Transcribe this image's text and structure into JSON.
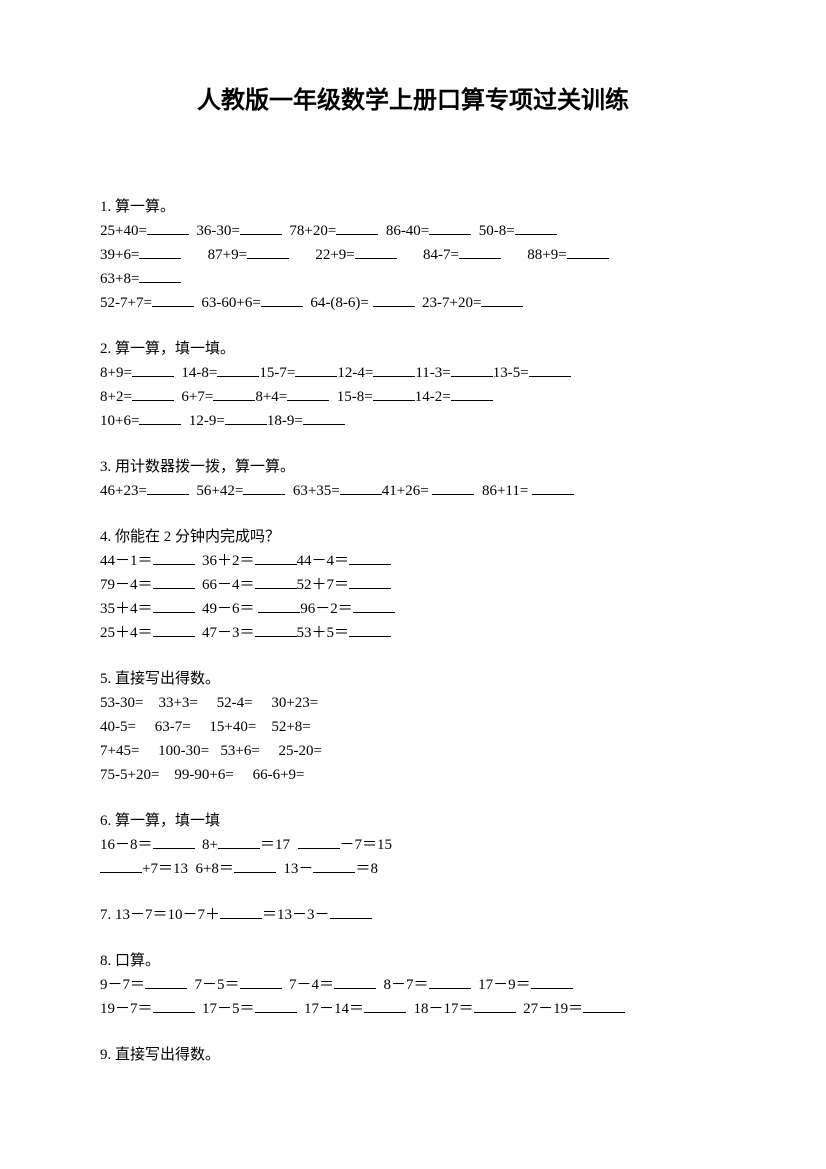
{
  "title": "人教版一年级数学上册口算专项过关训练",
  "sections": [
    {
      "heading": "1.  算一算。",
      "lines": [
        "25+40=______  36-30=______  78+20=______  86-40=______  50-8=______",
        "39+6=______       87+9=______       22+9=______       84-7=______       88+9=______",
        "63+8=______",
        "52-7+7=______  63-60+6=______  64-(8-6)= ______  23-7+20=______"
      ]
    },
    {
      "heading": "2.  算一算，填一填。",
      "lines": [
        "8+9=______  14-8=______15-7=______12-4=______11-3=______13-5=______",
        "8+2=______  6+7=______8+4=______  15-8=______14-2=______",
        "10+6=______  12-9=______18-9=______"
      ]
    },
    {
      "heading": "3.  用计数器拨一拨，算一算。",
      "lines": [
        "46+23=______  56+42=______  63+35=______41+26= ______  86+11= ______"
      ]
    },
    {
      "heading": "4.  你能在 2 分钟内完成吗？",
      "lines": [
        "44－1＝______  36＋2＝______44－4＝______",
        "79－4＝______  66－4＝______52＋7＝______",
        "35＋4＝______  49－6＝ ______96－2＝______",
        "25＋4＝______  47－3＝______53＋5＝______"
      ]
    },
    {
      "heading": "5.  直接写出得数。",
      "lines": [
        "53-30=    33+3=     52-4=     30+23=",
        "40-5=     63-7=     15+40=    52+8=",
        "7+45=     100-30=   53+6=     25-20=",
        "75-5+20=    99-90+6=     66-6+9="
      ]
    },
    {
      "heading": "6.  算一算，填一填",
      "lines": [
        "16－8＝______  8+______＝17  ______－7＝15",
        "______+7＝13  6+8＝______  13－______＝8"
      ]
    },
    {
      "heading": "7.  13－7＝10－7＋______＝13－3－______",
      "lines": []
    },
    {
      "heading": "8.  口算。",
      "lines": [
        "9－7＝______  7－5＝______  7－4＝______  8－7＝______  17－9＝______",
        "19－7＝______  17－5＝______  17－14＝______  18－17＝______  27－19＝______"
      ]
    },
    {
      "heading": "9.  直接写出得数。",
      "lines": []
    }
  ]
}
